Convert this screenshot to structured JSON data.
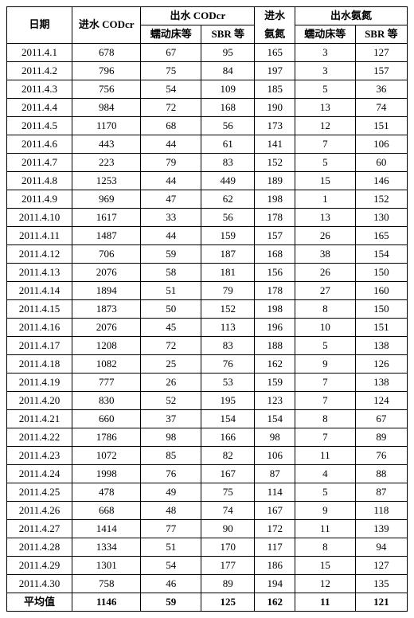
{
  "type": "table",
  "background_color": "#ffffff",
  "border_color": "#000000",
  "text_color": "#000000",
  "font_family": "SimSun",
  "font_size_pt": 10,
  "header": {
    "date": "日期",
    "in_codcr": "进水 CODcr",
    "out_codcr": "出水 CODcr",
    "in_nh3n": "进水",
    "in_nh3n_sub": "氨氮",
    "out_nh3n": "出水氨氮",
    "sub_peristaltic": "蠕动床等",
    "sub_sbr": "SBR 等"
  },
  "columns": [
    "日期",
    "进水 CODcr",
    "蠕动床等",
    "SBR 等",
    "进水氨氮",
    "蠕动床等",
    "SBR 等"
  ],
  "rows": [
    [
      "2011.4.1",
      "678",
      "67",
      "95",
      "165",
      "3",
      "127"
    ],
    [
      "2011.4.2",
      "796",
      "75",
      "84",
      "197",
      "3",
      "157"
    ],
    [
      "2011.4.3",
      "756",
      "54",
      "109",
      "185",
      "5",
      "36"
    ],
    [
      "2011.4.4",
      "984",
      "72",
      "168",
      "190",
      "13",
      "74"
    ],
    [
      "2011.4.5",
      "1170",
      "68",
      "56",
      "173",
      "12",
      "151"
    ],
    [
      "2011.4.6",
      "443",
      "44",
      "61",
      "141",
      "7",
      "106"
    ],
    [
      "2011.4.7",
      "223",
      "79",
      "83",
      "152",
      "5",
      "60"
    ],
    [
      "2011.4.8",
      "1253",
      "44",
      "449",
      "189",
      "15",
      "146"
    ],
    [
      "2011.4.9",
      "969",
      "47",
      "62",
      "198",
      "1",
      "152"
    ],
    [
      "2011.4.10",
      "1617",
      "33",
      "56",
      "178",
      "13",
      "130"
    ],
    [
      "2011.4.11",
      "1487",
      "44",
      "159",
      "157",
      "26",
      "165"
    ],
    [
      "2011.4.12",
      "706",
      "59",
      "187",
      "168",
      "38",
      "154"
    ],
    [
      "2011.4.13",
      "2076",
      "58",
      "181",
      "156",
      "26",
      "150"
    ],
    [
      "2011.4.14",
      "1894",
      "51",
      "79",
      "178",
      "27",
      "160"
    ],
    [
      "2011.4.15",
      "1873",
      "50",
      "152",
      "198",
      "8",
      "150"
    ],
    [
      "2011.4.16",
      "2076",
      "45",
      "113",
      "196",
      "10",
      "151"
    ],
    [
      "2011.4.17",
      "1208",
      "72",
      "83",
      "188",
      "5",
      "138"
    ],
    [
      "2011.4.18",
      "1082",
      "25",
      "76",
      "162",
      "9",
      "126"
    ],
    [
      "2011.4.19",
      "777",
      "26",
      "53",
      "159",
      "7",
      "138"
    ],
    [
      "2011.4.20",
      "830",
      "52",
      "195",
      "123",
      "7",
      "124"
    ],
    [
      "2011.4.21",
      "660",
      "37",
      "154",
      "154",
      "8",
      "67"
    ],
    [
      "2011.4.22",
      "1786",
      "98",
      "166",
      "98",
      "7",
      "89"
    ],
    [
      "2011.4.23",
      "1072",
      "85",
      "82",
      "106",
      "11",
      "76"
    ],
    [
      "2011.4.24",
      "1998",
      "76",
      "167",
      "87",
      "4",
      "88"
    ],
    [
      "2011.4.25",
      "478",
      "49",
      "75",
      "114",
      "5",
      "87"
    ],
    [
      "2011.4.26",
      "668",
      "48",
      "74",
      "167",
      "9",
      "118"
    ],
    [
      "2011.4.27",
      "1414",
      "77",
      "90",
      "172",
      "11",
      "139"
    ],
    [
      "2011.4.28",
      "1334",
      "51",
      "170",
      "117",
      "8",
      "94"
    ],
    [
      "2011.4.29",
      "1301",
      "54",
      "177",
      "186",
      "15",
      "127"
    ],
    [
      "2011.4.30",
      "758",
      "46",
      "89",
      "194",
      "12",
      "135"
    ]
  ],
  "average": [
    "平均值",
    "1146",
    "59",
    "125",
    "162",
    "11",
    "121"
  ]
}
